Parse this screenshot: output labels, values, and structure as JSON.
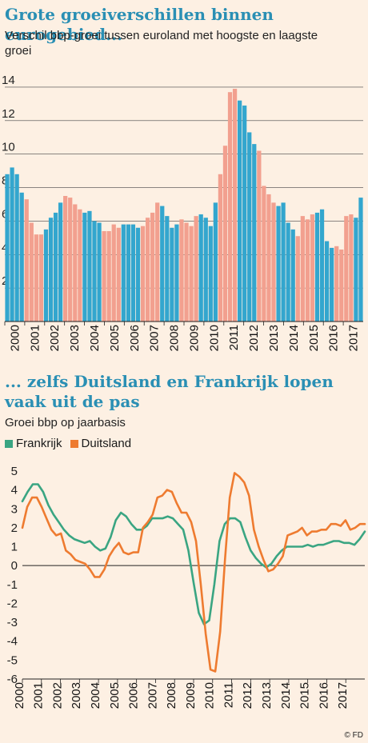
{
  "chart_data": [
    {
      "type": "bar",
      "title": "Grote groeiverschillen binnen eurogebied...",
      "subtitle": "Verschil bbp-groei tussen euroland met hoogste en laagste groei",
      "x_tick_labels": [
        "2000",
        "2001",
        "2002",
        "2003",
        "2004",
        "2005",
        "2006",
        "2007",
        "2008",
        "2009",
        "2010",
        "2011",
        "2012",
        "2013",
        "2014",
        "2015",
        "2016",
        "2017"
      ],
      "ylim": [
        0,
        15
      ],
      "y_ticks": [
        2,
        4,
        6,
        8,
        10,
        12,
        14
      ],
      "bar_colors": [
        "#33a6ce",
        "#f2a08f"
      ],
      "values": [
        8.8,
        9.2,
        8.8,
        7.7,
        7.3,
        5.9,
        5.2,
        5.2,
        5.5,
        6.2,
        6.5,
        7.1,
        7.5,
        7.4,
        7.0,
        6.7,
        6.5,
        6.6,
        6.0,
        5.9,
        5.4,
        5.4,
        5.8,
        5.6,
        5.8,
        5.8,
        5.8,
        5.6,
        5.7,
        6.2,
        6.5,
        7.1,
        6.9,
        6.3,
        5.6,
        5.8,
        6.1,
        5.9,
        5.7,
        6.3,
        6.4,
        6.2,
        5.7,
        7.1,
        8.8,
        10.5,
        13.7,
        13.9,
        13.2,
        12.9,
        11.3,
        10.6,
        10.2,
        8.1,
        7.6,
        7.1,
        6.9,
        7.1,
        5.9,
        5.5,
        5.1,
        6.3,
        6.1,
        6.4,
        6.5,
        6.7,
        4.8,
        4.4,
        4.5,
        4.3,
        6.3,
        6.4,
        6.2,
        7.4
      ]
    },
    {
      "type": "line",
      "title": "... zelfs Duitsland en Frankrijk lopen vaak uit de pas",
      "subtitle": "Groei bbp op jaarbasis",
      "x_tick_labels": [
        "2000",
        "2001",
        "2002",
        "2003",
        "2004",
        "2005",
        "2006",
        "2007",
        "2008",
        "2009",
        "2010",
        "2011",
        "2012",
        "2013",
        "2014",
        "2015",
        "2016",
        "2017"
      ],
      "ylim": [
        -6,
        5
      ],
      "y_ticks": [
        5,
        4,
        3,
        2,
        1,
        0,
        -1,
        -2,
        -3,
        -4,
        -5,
        -6
      ],
      "series": [
        {
          "name": "Frankrijk",
          "color": "#3aa582",
          "values": [
            3.4,
            3.9,
            4.3,
            4.3,
            3.9,
            3.2,
            2.7,
            2.3,
            1.9,
            1.6,
            1.4,
            1.3,
            1.2,
            1.3,
            1.0,
            0.8,
            0.9,
            1.5,
            2.4,
            2.8,
            2.6,
            2.2,
            1.9,
            1.9,
            2.1,
            2.5,
            2.5,
            2.5,
            2.6,
            2.5,
            2.2,
            1.9,
            0.8,
            -0.9,
            -2.5,
            -3.1,
            -2.9,
            -1.0,
            1.3,
            2.2,
            2.5,
            2.5,
            2.3,
            1.5,
            0.8,
            0.4,
            0.1,
            -0.1,
            0.1,
            0.5,
            0.8,
            1.0,
            1.0,
            1.0,
            1.0,
            1.1,
            1.0,
            1.1,
            1.1,
            1.2,
            1.3,
            1.3,
            1.2,
            1.2,
            1.1,
            1.4,
            1.8
          ]
        },
        {
          "name": "Duitsland",
          "color": "#ee7b30",
          "values": [
            2.0,
            3.1,
            3.6,
            3.6,
            3.1,
            2.5,
            1.9,
            1.6,
            1.7,
            0.8,
            0.6,
            0.3,
            0.2,
            0.1,
            -0.2,
            -0.6,
            -0.6,
            -0.2,
            0.5,
            0.9,
            1.2,
            0.7,
            0.6,
            0.7,
            0.7,
            2.0,
            2.3,
            2.7,
            3.6,
            3.7,
            4.0,
            3.9,
            3.3,
            2.8,
            2.8,
            2.3,
            1.3,
            -1.0,
            -3.6,
            -5.5,
            -5.6,
            -3.5,
            0.3,
            3.6,
            4.9,
            4.7,
            4.4,
            3.7,
            1.9,
            1.0,
            0.3,
            -0.3,
            -0.2,
            0.1,
            0.5,
            1.6,
            1.7,
            1.8,
            2.0,
            1.6,
            1.8,
            1.8,
            1.9,
            1.9,
            2.2,
            2.2,
            2.1,
            2.4,
            1.9,
            2.0,
            2.2,
            2.2
          ]
        }
      ]
    }
  ],
  "credit": "© FD"
}
